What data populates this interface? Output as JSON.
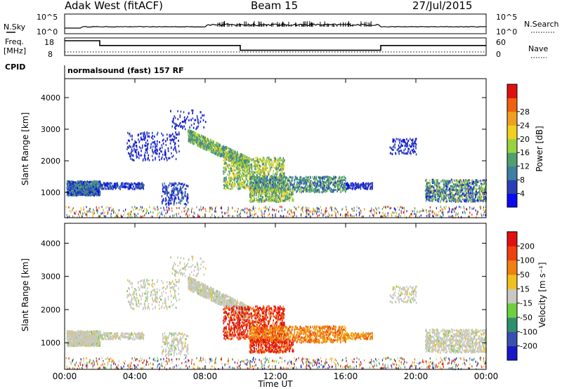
{
  "header": {
    "station": "Adak West (fitACF)",
    "beam": "Beam 15",
    "date": "27/Jul/2015"
  },
  "panels": {
    "nsky_label": "N.Sky",
    "nsearch_label": "N.Search",
    "nsky_ticks": [
      "10^5",
      "10^0"
    ],
    "freq_label": "Freq.",
    "freq_unit": "[MHz]",
    "freq_ticks": [
      "18",
      "8"
    ],
    "nave_label": "Nave",
    "nave_ticks": [
      "60",
      "0"
    ],
    "cpid_label": "CPID",
    "cpid_value": "normalsound (fast) 157 RF"
  },
  "chart_data": [
    {
      "type": "line",
      "title": "N.Sky / N.Search",
      "ylabel": "N.Sky",
      "scale": "log",
      "ylim_labels": [
        "10^0",
        "10^5"
      ]
    },
    {
      "type": "line",
      "title": "Freq. / Nave",
      "ylabel": "Freq. [MHz]",
      "x": [
        "00:00",
        "02:00",
        "02:00",
        "10:00",
        "10:00",
        "18:00",
        "18:00",
        "24:00"
      ],
      "series": [
        {
          "name": "Freq.",
          "values": [
            18,
            18,
            14,
            14,
            10,
            10,
            14,
            14
          ]
        }
      ],
      "ylim": [
        8,
        18
      ]
    },
    {
      "type": "heatmap",
      "title": "Power",
      "xlabel": "Time UT",
      "ylabel": "Slant Range [km]",
      "xticks": [
        "00:00",
        "04:00",
        "08:00",
        "12:00",
        "16:00",
        "20:00",
        "00:00"
      ],
      "yticks": [
        "1000",
        "2000",
        "3000",
        "4000"
      ],
      "ylim": [
        200,
        4600
      ],
      "colorbar": {
        "label": "Power [dB]",
        "ticks": [
          "4",
          "8",
          "12",
          "16",
          "20",
          "24",
          "28"
        ],
        "colors": [
          "#0a0af0",
          "#2a3fb6",
          "#3f7f9f",
          "#4f9f6f",
          "#9ad13f",
          "#f0d020",
          "#f0a020",
          "#f06010",
          "#e01010"
        ]
      }
    },
    {
      "type": "heatmap",
      "title": "Velocity",
      "xlabel": "Time UT",
      "ylabel": "Slant Range [km]",
      "xticks": [
        "00:00",
        "04:00",
        "08:00",
        "12:00",
        "16:00",
        "20:00",
        "00:00"
      ],
      "yticks": [
        "1000",
        "2000",
        "3000",
        "4000"
      ],
      "ylim": [
        200,
        4600
      ],
      "colorbar": {
        "label": "Velocity [m s⁻¹]",
        "ticks": [
          "200",
          "100",
          "50",
          "15",
          "-15",
          "-50",
          "-100",
          "-200"
        ],
        "colors": [
          "#1818c8",
          "#3a4fb0",
          "#2f8f6f",
          "#6fcf3f",
          "#c8c8c0",
          "#f0c020",
          "#f08010",
          "#f04010",
          "#e01010"
        ]
      }
    }
  ],
  "xaxis": {
    "label": "Time UT",
    "ticks": [
      "00:00",
      "04:00",
      "08:00",
      "12:00",
      "16:00",
      "20:00",
      "00:00"
    ]
  }
}
